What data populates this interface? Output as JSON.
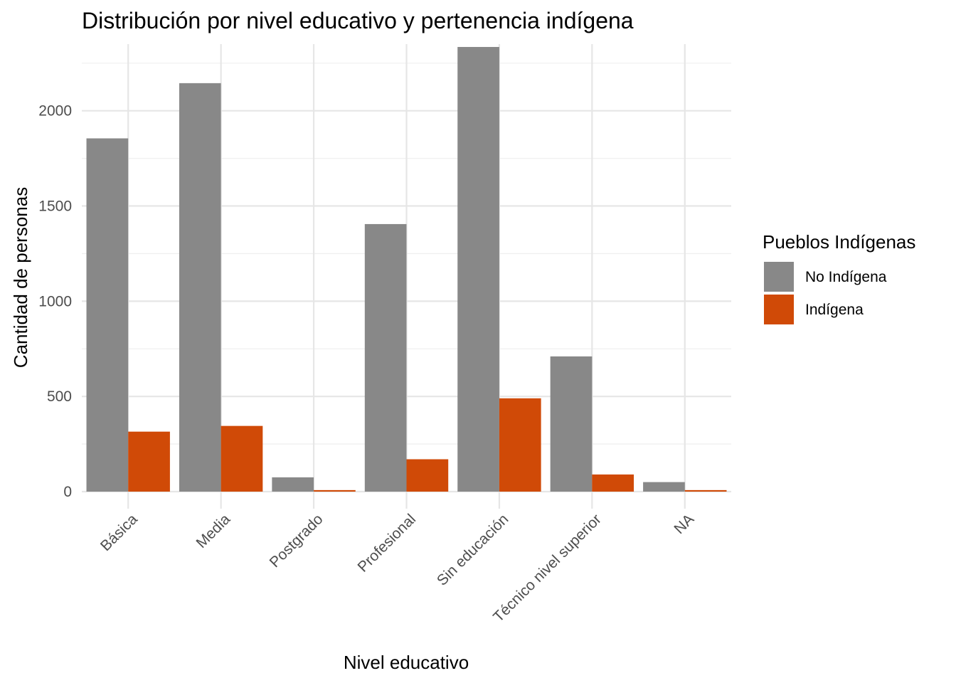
{
  "chart_data": {
    "type": "bar",
    "title": "Distribución por nivel educativo y pertenencia indígena",
    "xlabel": "Nivel educativo",
    "ylabel": "Cantidad de personas",
    "categories": [
      "Básica",
      "Media",
      "Postgrado",
      "Profesional",
      "Sin educación",
      "Técnico nivel superior",
      "NA"
    ],
    "series": [
      {
        "name": "No Indígena",
        "color": "#888888",
        "values": [
          1855,
          2145,
          75,
          1405,
          2335,
          710,
          50
        ]
      },
      {
        "name": "Indígena",
        "color": "#D04A07",
        "values": [
          315,
          345,
          8,
          170,
          490,
          90,
          8
        ]
      }
    ],
    "ylim": [
      0,
      2350
    ],
    "yticks": [
      0,
      500,
      1000,
      1500,
      2000
    ],
    "grid": true,
    "legend": {
      "title": "Pueblos Indígenas",
      "placement": "right"
    }
  }
}
